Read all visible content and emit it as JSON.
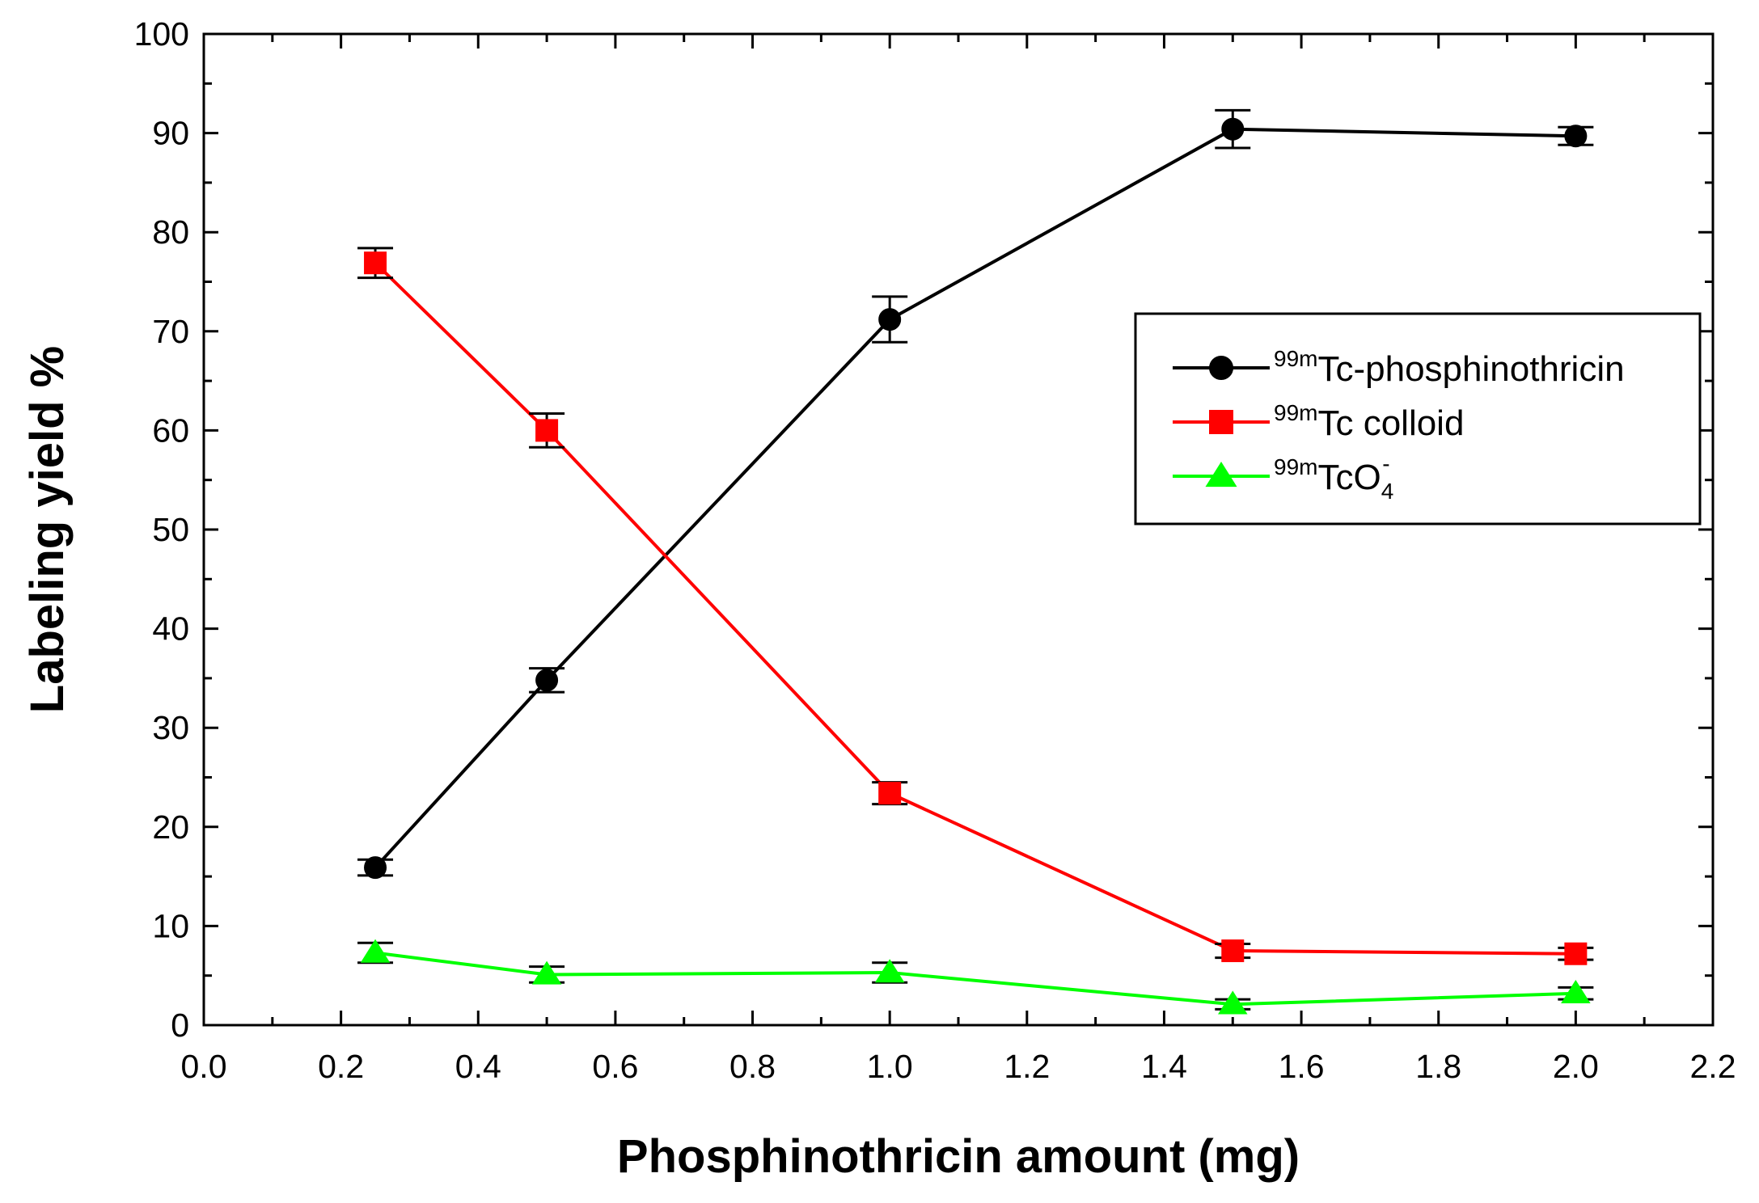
{
  "chart_data": {
    "type": "line",
    "title": "",
    "xlabel": "Phosphinothricin amount (mg)",
    "ylabel": "Labeling yield %",
    "xlim": [
      0.0,
      2.2
    ],
    "ylim": [
      0,
      100
    ],
    "xticks": [
      0.0,
      0.2,
      0.4,
      0.6,
      0.8,
      1.0,
      1.2,
      1.4,
      1.6,
      1.8,
      2.0,
      2.2
    ],
    "xtick_labels": [
      "0.0",
      "0.2",
      "0.4",
      "0.6",
      "0.8",
      "1.0",
      "1.2",
      "1.4",
      "1.6",
      "1.8",
      "2.0",
      "2.2"
    ],
    "yticks": [
      0,
      10,
      20,
      30,
      40,
      50,
      60,
      70,
      80,
      90,
      100
    ],
    "ytick_labels": [
      "0",
      "10",
      "20",
      "30",
      "40",
      "50",
      "60",
      "70",
      "80",
      "90",
      "100"
    ],
    "grid": false,
    "legend_position": "right",
    "x": [
      0.25,
      0.5,
      1.0,
      1.5,
      2.0
    ],
    "series": [
      {
        "name": "Tc-phosphinothricin",
        "prefix": "99m",
        "color": "#000000",
        "marker": "circle",
        "values": [
          15.9,
          34.8,
          71.2,
          90.4,
          89.7
        ],
        "errors": [
          0.8,
          1.2,
          2.3,
          1.9,
          0.9
        ]
      },
      {
        "name": "Tc colloid",
        "prefix": "99m",
        "color": "#ff0000",
        "marker": "square",
        "values": [
          76.9,
          60.0,
          23.4,
          7.5,
          7.2
        ],
        "errors": [
          1.5,
          1.7,
          1.1,
          0.7,
          0.6
        ]
      },
      {
        "name": "TcO",
        "prefix": "99m",
        "subscript": "4",
        "superscript": "-",
        "color": "#00ff00",
        "marker": "triangle",
        "values": [
          7.3,
          5.1,
          5.3,
          2.1,
          3.2
        ],
        "errors": [
          1.0,
          0.8,
          1.0,
          0.5,
          0.6
        ]
      }
    ]
  }
}
